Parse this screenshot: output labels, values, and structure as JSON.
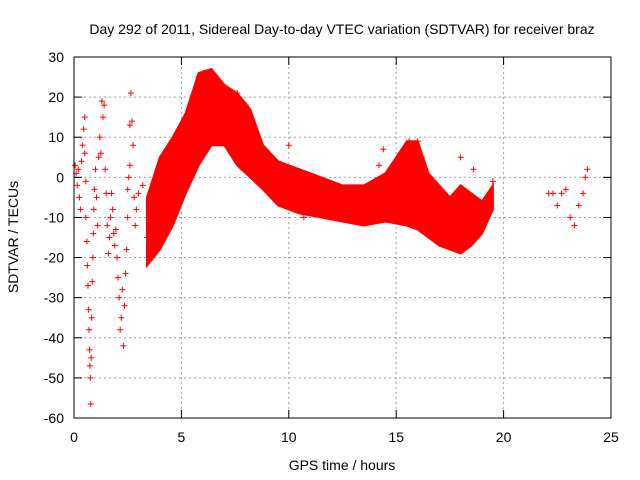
{
  "chart_data": {
    "type": "scatter",
    "title": "Day 292 of 2011, Sidereal Day-to-day VTEC variation (SDTVAR) for receiver braz",
    "xlabel": "GPS time / hours",
    "ylabel": "SDTVAR / TECUs",
    "xlim": [
      0,
      25
    ],
    "ylim": [
      -60,
      30
    ],
    "xticks": [
      0,
      5,
      10,
      15,
      20,
      25
    ],
    "yticks": [
      -60,
      -50,
      -40,
      -30,
      -20,
      -10,
      0,
      10,
      20,
      30
    ],
    "grid": true,
    "marker": "+",
    "series": [
      {
        "name": "SDTVAR",
        "color": "#ff0000",
        "points": [
          [
            0.05,
            3
          ],
          [
            0.1,
            1
          ],
          [
            0.15,
            -2
          ],
          [
            0.2,
            2
          ],
          [
            0.25,
            -5
          ],
          [
            0.3,
            -8
          ],
          [
            0.35,
            4
          ],
          [
            0.4,
            8
          ],
          [
            0.45,
            12
          ],
          [
            0.5,
            15
          ],
          [
            0.5,
            6
          ],
          [
            0.55,
            -1
          ],
          [
            0.55,
            -10
          ],
          [
            0.6,
            -16
          ],
          [
            0.62,
            -22
          ],
          [
            0.65,
            -27
          ],
          [
            0.68,
            -33
          ],
          [
            0.7,
            -38
          ],
          [
            0.72,
            -43
          ],
          [
            0.74,
            -47
          ],
          [
            0.76,
            -50
          ],
          [
            0.78,
            -56.5
          ],
          [
            0.8,
            -45
          ],
          [
            0.82,
            -35
          ],
          [
            0.85,
            -26
          ],
          [
            0.88,
            -20
          ],
          [
            0.9,
            -14
          ],
          [
            0.92,
            -8
          ],
          [
            0.95,
            -3
          ],
          [
            1.0,
            2
          ],
          [
            1.05,
            -5
          ],
          [
            1.1,
            -12
          ],
          [
            1.15,
            5
          ],
          [
            1.2,
            10
          ],
          [
            1.25,
            6
          ],
          [
            1.3,
            19
          ],
          [
            1.35,
            15
          ],
          [
            1.4,
            18
          ],
          [
            1.45,
            2
          ],
          [
            1.5,
            -4
          ],
          [
            1.55,
            -12
          ],
          [
            1.6,
            -19
          ],
          [
            1.65,
            -15
          ],
          [
            1.7,
            -10
          ],
          [
            1.75,
            -4
          ],
          [
            1.8,
            -8
          ],
          [
            1.85,
            -14
          ],
          [
            1.9,
            -17
          ],
          [
            1.95,
            -13
          ],
          [
            2.0,
            -20
          ],
          [
            2.05,
            -25
          ],
          [
            2.1,
            -30
          ],
          [
            2.15,
            -38
          ],
          [
            2.2,
            -35
          ],
          [
            2.25,
            -28
          ],
          [
            2.3,
            -42
          ],
          [
            2.35,
            -32
          ],
          [
            2.4,
            -24
          ],
          [
            2.45,
            -18
          ],
          [
            2.5,
            -10
          ],
          [
            2.5,
            -3
          ],
          [
            2.55,
            0
          ],
          [
            2.6,
            3
          ],
          [
            2.6,
            13
          ],
          [
            2.65,
            21
          ],
          [
            2.7,
            14
          ],
          [
            2.75,
            8
          ],
          [
            2.8,
            -5
          ],
          [
            2.85,
            -12
          ],
          [
            2.9,
            -8
          ],
          [
            3.0,
            -4
          ],
          [
            3.2,
            -2
          ],
          [
            3.4,
            -15
          ],
          [
            3.6,
            -12
          ],
          [
            3.8,
            -5
          ],
          [
            4.0,
            -8
          ],
          [
            4.2,
            -10
          ],
          [
            4.4,
            -6
          ],
          [
            4.6,
            -3
          ],
          [
            4.8,
            -2
          ],
          [
            5.0,
            0
          ],
          [
            5.2,
            5
          ],
          [
            5.4,
            12
          ],
          [
            5.6,
            20
          ],
          [
            5.8,
            25
          ],
          [
            6.0,
            26
          ],
          [
            6.2,
            20
          ],
          [
            6.4,
            18
          ],
          [
            6.6,
            23
          ],
          [
            6.8,
            15
          ],
          [
            7.0,
            12
          ],
          [
            7.2,
            15
          ],
          [
            7.4,
            20
          ],
          [
            7.6,
            21
          ],
          [
            7.8,
            18
          ],
          [
            8.0,
            18
          ],
          [
            8.2,
            15
          ],
          [
            8.4,
            8
          ],
          [
            8.6,
            5
          ],
          [
            8.8,
            2
          ],
          [
            9.0,
            1
          ],
          [
            9.5,
            -2
          ],
          [
            10.0,
            8
          ],
          [
            10.5,
            -6
          ],
          [
            10.7,
            -10
          ],
          [
            11.0,
            -3
          ],
          [
            11.5,
            -4
          ],
          [
            12.0,
            -5
          ],
          [
            12.5,
            -5
          ],
          [
            13.0,
            -6
          ],
          [
            13.5,
            -6
          ],
          [
            14.0,
            -4
          ],
          [
            14.2,
            3
          ],
          [
            14.4,
            7
          ],
          [
            14.6,
            -5
          ],
          [
            15.0,
            -6
          ],
          [
            15.2,
            6
          ],
          [
            15.6,
            9
          ],
          [
            16.0,
            9
          ],
          [
            16.2,
            5
          ],
          [
            16.4,
            -9
          ],
          [
            16.8,
            -13
          ],
          [
            17.2,
            -15
          ],
          [
            17.6,
            -17
          ],
          [
            18.0,
            5
          ],
          [
            18.2,
            -5
          ],
          [
            18.4,
            -12
          ],
          [
            18.6,
            2
          ],
          [
            18.8,
            -14
          ],
          [
            19.0,
            -12
          ],
          [
            19.2,
            -8
          ],
          [
            19.4,
            -4
          ],
          [
            19.5,
            -1
          ],
          [
            22.1,
            -4
          ],
          [
            22.3,
            -4
          ],
          [
            22.5,
            -7
          ],
          [
            22.7,
            -4
          ],
          [
            22.9,
            -3
          ],
          [
            23.1,
            -10
          ],
          [
            23.3,
            -12
          ],
          [
            23.5,
            -7
          ],
          [
            23.7,
            -4
          ],
          [
            23.8,
            0
          ],
          [
            23.9,
            2
          ]
        ],
        "bands": [
          {
            "x": [
              3.4,
              4.0,
              4.6,
              5.2,
              5.8,
              6.4,
              7.0,
              7.6,
              8.2,
              8.8,
              9.5,
              10.5,
              11.5,
              12.5,
              13.5,
              14.5,
              15.5,
              16.0,
              16.5,
              17.0,
              17.5,
              18.0,
              18.5,
              19.0,
              19.5
            ],
            "upper": [
              -5,
              5,
              10,
              16,
              26,
              27,
              23,
              21,
              17,
              8,
              4,
              2,
              0,
              -2,
              -2,
              1,
              9,
              9,
              1,
              -2,
              -5,
              -2,
              -4,
              -6,
              -2
            ],
            "lower": [
              -22,
              -18,
              -12,
              -4,
              3,
              8,
              8,
              3,
              0,
              -3,
              -7,
              -9,
              -10,
              -11,
              -12,
              -11,
              -12,
              -13,
              -15,
              -17,
              -18,
              -19,
              -17,
              -14,
              -8
            ]
          }
        ]
      }
    ]
  }
}
